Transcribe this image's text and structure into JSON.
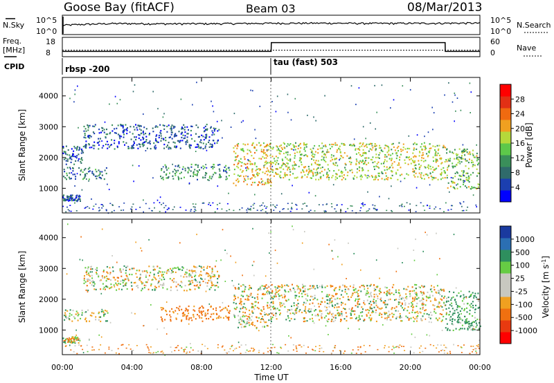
{
  "header": {
    "station": "Goose Bay (fitACF)",
    "beam": "Beam 03",
    "date": "08/Mar/2013"
  },
  "status_panel": {
    "nsky_label": "N.Sky",
    "nsky_ticks": [
      "10^5",
      "10^0"
    ],
    "nsearch_label": "N.Search",
    "nsearch_ticks": [
      "10^5",
      "10^0"
    ],
    "freq_label": "Freq.",
    "freq_unit": "[MHz]",
    "freq_ticks": [
      "18",
      "8"
    ],
    "nave_label": "Nave",
    "nave_ticks": [
      "60",
      "0"
    ],
    "cpid_label": "CPID",
    "cpid_segments": [
      {
        "label": "rbsp -200",
        "start_hour": 0
      },
      {
        "label": "tau (fast) 503",
        "start_hour": 12
      }
    ]
  },
  "colors": {
    "power": [
      "#0000ff",
      "#1b3fb0",
      "#2f6b6b",
      "#3a8f5a",
      "#5dc84a",
      "#b5d93a",
      "#f0a020",
      "#f06a10",
      "#e23015",
      "#ff0000"
    ],
    "velocity": [
      "#1a3a9f",
      "#2b6fb3",
      "#2e8f5e",
      "#66cc44",
      "#c8c8c0",
      "#c8c8c0",
      "#f0a020",
      "#f07010",
      "#e83a10",
      "#ff0000"
    ]
  },
  "chart_data": [
    {
      "type": "line",
      "title": "N.Sky / N.Search",
      "x": [
        0,
        3,
        6,
        9,
        12,
        15,
        18,
        21,
        24
      ],
      "series": [
        {
          "name": "N.Sky",
          "values": [
            200,
            600,
            500,
            550,
            700,
            750,
            650,
            700,
            800
          ]
        }
      ],
      "xlim": [
        0,
        24
      ],
      "ylim_log": [
        1,
        100000
      ]
    },
    {
      "type": "line",
      "title": "Freq. / Nave",
      "x": [
        0,
        12,
        12.01,
        22,
        22.01,
        24
      ],
      "series": [
        {
          "name": "Freq.",
          "values": [
            10.7,
            10.7,
            15.3,
            15.3,
            10.7,
            10.7
          ]
        },
        {
          "name": "Nave",
          "values": [
            20,
            20,
            20,
            20,
            20,
            20
          ]
        }
      ],
      "xlim": [
        0,
        24
      ],
      "ylim": [
        8,
        18
      ]
    },
    {
      "type": "heatmap",
      "title": "Power",
      "xlabel": "",
      "ylabel": "Slant Range [km]",
      "colorbar_label": "Power [dB]",
      "colorbar_ticks": [
        "28",
        "24",
        "20",
        "16",
        "12",
        "8",
        "4"
      ],
      "colorbar_range": [
        0,
        30
      ],
      "xlim": [
        0,
        24
      ],
      "ylim": [
        200,
        4600
      ],
      "yticks": [
        "4000",
        "3000",
        "2000",
        "1000"
      ],
      "regions": [
        {
          "t0": 0,
          "t1": 2.6,
          "r0": 1300,
          "r1": 1700,
          "level": 8
        },
        {
          "t0": 0,
          "t1": 1.2,
          "r0": 1800,
          "r1": 2400,
          "level": 6
        },
        {
          "t0": 1.2,
          "t1": 9.0,
          "r0": 2300,
          "r1": 3100,
          "level": 6
        },
        {
          "t0": 5.6,
          "t1": 9.6,
          "r0": 1300,
          "r1": 1800,
          "level": 10
        },
        {
          "t0": 9.8,
          "t1": 12.0,
          "r0": 1100,
          "r1": 2500,
          "level": 18
        },
        {
          "t0": 12.0,
          "t1": 22.0,
          "r0": 1300,
          "r1": 2500,
          "level": 16
        },
        {
          "t0": 22.0,
          "t1": 24.0,
          "r0": 1000,
          "r1": 2300,
          "level": 14
        },
        {
          "t0": 0,
          "t1": 1.0,
          "r0": 600,
          "r1": 800,
          "level": 6
        }
      ]
    },
    {
      "type": "heatmap",
      "title": "Velocity",
      "xlabel": "Time UT",
      "ylabel": "Slant Range [km]",
      "colorbar_label": "Velocity [m s^-1]",
      "colorbar_ticks": [
        "1000",
        "500",
        "100",
        "25",
        "-25",
        "-100",
        "-500",
        "-1000"
      ],
      "xlim": [
        0,
        24
      ],
      "ylim": [
        200,
        4600
      ],
      "yticks": [
        "4000",
        "3000",
        "2000",
        "1000"
      ],
      "xticks": [
        "00:00",
        "04:00",
        "08:00",
        "12:00",
        "16:00",
        "20:00",
        "00:00"
      ],
      "regions": [
        {
          "t0": 0,
          "t1": 2.6,
          "r0": 1300,
          "r1": 1700,
          "vel": 50
        },
        {
          "t0": 1.2,
          "t1": 9.0,
          "r0": 2300,
          "r1": 3100,
          "vel": 0
        },
        {
          "t0": 5.6,
          "t1": 9.6,
          "r0": 1300,
          "r1": 1800,
          "vel": -200
        },
        {
          "t0": 9.8,
          "t1": 12.0,
          "r0": 1100,
          "r1": 2500,
          "vel": 0
        },
        {
          "t0": 12.0,
          "t1": 22.0,
          "r0": 1300,
          "r1": 2500,
          "vel": 0
        },
        {
          "t0": 22.0,
          "t1": 24.0,
          "r0": 1000,
          "r1": 2300,
          "vel": 150
        },
        {
          "t0": 0,
          "t1": 1.0,
          "r0": 600,
          "r1": 800,
          "vel": 0
        }
      ]
    }
  ]
}
